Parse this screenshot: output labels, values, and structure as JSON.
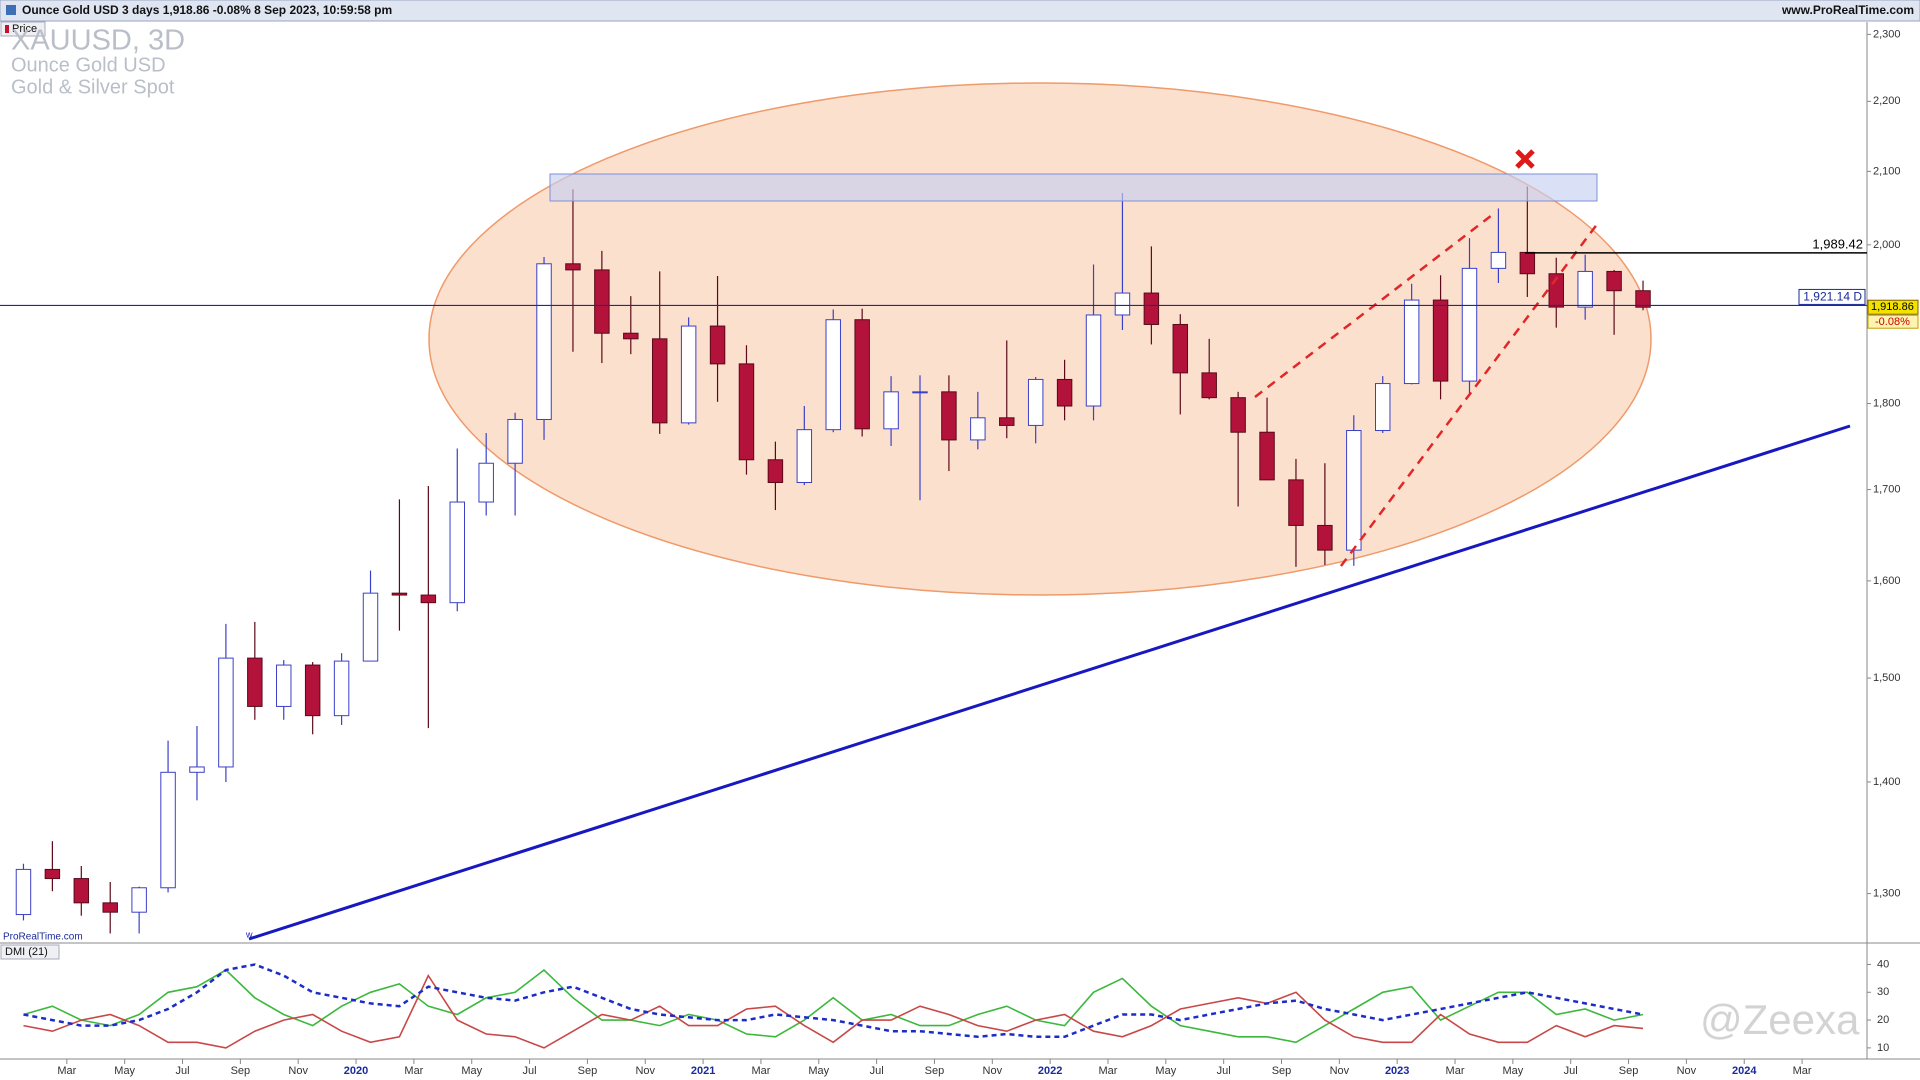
{
  "header": {
    "title": "Ounce Gold USD 3 days 1,918.86 -0.08% 8 Sep 2023, 10:59:58 pm",
    "site": "www.ProRealTime.com",
    "price_tab": "Price",
    "symbol": "XAUUSD, 3D",
    "name": "Ounce Gold USD",
    "market": "Gold & Silver Spot",
    "credit": "ProRealTime.com",
    "watermark": "@Zeexa"
  },
  "chart_data": [
    {
      "type": "candlestick",
      "log_scale": true,
      "x": [
        "2019-01",
        "2019-02",
        "2019-03",
        "2019-04",
        "2019-05",
        "2019-06",
        "2019-07",
        "2019-08",
        "2019-09",
        "2019-10",
        "2019-11",
        "2019-12",
        "2020-01",
        "2020-02",
        "2020-03",
        "2020-04",
        "2020-05",
        "2020-06",
        "2020-07",
        "2020-08",
        "2020-09",
        "2020-10",
        "2020-11",
        "2020-12",
        "2021-01",
        "2021-02",
        "2021-03",
        "2021-04",
        "2021-05",
        "2021-06",
        "2021-07",
        "2021-08",
        "2021-09",
        "2021-10",
        "2021-11",
        "2021-12",
        "2022-01",
        "2022-02",
        "2022-03",
        "2022-04",
        "2022-05",
        "2022-06",
        "2022-07",
        "2022-08",
        "2022-09",
        "2022-10",
        "2022-11",
        "2022-12",
        "2023-01",
        "2023-02",
        "2023-03",
        "2023-04",
        "2023-05",
        "2023-06",
        "2023-07",
        "2023-08",
        "2023-09"
      ],
      "open": [
        1282,
        1321,
        1313,
        1292,
        1284,
        1305,
        1409,
        1414,
        1520,
        1472,
        1513,
        1463,
        1517,
        1587,
        1585,
        1577,
        1686,
        1730,
        1781,
        1975,
        1967,
        1886,
        1879,
        1777,
        1895,
        1848,
        1734,
        1708,
        1769,
        1903,
        1770,
        1814,
        1814,
        1757,
        1783,
        1774,
        1829,
        1797,
        1909,
        1937,
        1897,
        1837,
        1807,
        1766,
        1711,
        1660,
        1633,
        1768,
        1824,
        1928,
        1827,
        1969,
        1990,
        1962,
        1919,
        1965,
        1940
      ],
      "high": [
        1326,
        1346,
        1324,
        1310,
        1306,
        1439,
        1453,
        1555,
        1557,
        1518,
        1516,
        1525,
        1611,
        1689,
        1704,
        1747,
        1765,
        1789,
        1984,
        2075,
        1992,
        1933,
        1965,
        1906,
        1959,
        1871,
        1755,
        1797,
        1916,
        1917,
        1833,
        1834,
        1834,
        1814,
        1877,
        1832,
        1853,
        1974,
        2070,
        1998,
        1910,
        1879,
        1814,
        1807,
        1735,
        1730,
        1786,
        1833,
        1949,
        1960,
        2009,
        2049,
        2079,
        1983,
        1987,
        1967,
        1953
      ],
      "low": [
        1277,
        1302,
        1281,
        1266,
        1266,
        1301,
        1383,
        1400,
        1459,
        1459,
        1445,
        1454,
        1517,
        1548,
        1451,
        1568,
        1671,
        1671,
        1757,
        1863,
        1849,
        1860,
        1764,
        1775,
        1802,
        1717,
        1677,
        1705,
        1766,
        1761,
        1750,
        1688,
        1721,
        1746,
        1759,
        1753,
        1780,
        1780,
        1890,
        1872,
        1787,
        1805,
        1681,
        1711,
        1615,
        1617,
        1616,
        1765,
        1823,
        1805,
        1810,
        1950,
        1932,
        1893,
        1903,
        1884,
        1915
      ],
      "close": [
        1321,
        1313,
        1292,
        1284,
        1305,
        1409,
        1414,
        1520,
        1472,
        1513,
        1463,
        1517,
        1587,
        1585,
        1577,
        1686,
        1730,
        1781,
        1975,
        1967,
        1886,
        1879,
        1777,
        1895,
        1848,
        1734,
        1708,
        1769,
        1903,
        1770,
        1814,
        1814,
        1757,
        1783,
        1774,
        1829,
        1797,
        1909,
        1937,
        1897,
        1837,
        1807,
        1766,
        1711,
        1660,
        1633,
        1768,
        1824,
        1928,
        1827,
        1969,
        1990,
        1962,
        1919,
        1965,
        1940,
        1918.86
      ],
      "up_color": "#ffffff",
      "up_edge": "#3b40c8",
      "down_color": "#b3123a",
      "down_edge": "#5a0a1a",
      "xlim": [
        "2019-01",
        "2024-04"
      ],
      "ylim": [
        1258,
        2319
      ],
      "yticks": [
        {
          "value": 1300,
          "label": "1,300"
        },
        {
          "value": 1400,
          "label": "1,400"
        },
        {
          "value": 1500,
          "label": "1,500"
        },
        {
          "value": 1600,
          "label": "1,600"
        },
        {
          "value": 1700,
          "label": "1,700"
        },
        {
          "value": 1800,
          "label": "1,800"
        },
        {
          "value": 2000,
          "label": "2,000"
        },
        {
          "value": 2100,
          "label": "2,100"
        },
        {
          "value": 2200,
          "label": "2,200"
        },
        {
          "value": 2300,
          "label": "2,300"
        }
      ],
      "levels": [
        {
          "value": 1989.42,
          "label": "1,989.42",
          "color": "#000000"
        },
        {
          "value": 1921.14,
          "label": "1,921.14 D",
          "color": "#1a2a9a"
        }
      ],
      "last_price": {
        "value": 1918.86,
        "label": "1,918.86"
      },
      "change_label": "-0.08%"
    },
    {
      "type": "line",
      "title": "DMI (21)",
      "x": [
        "2019-01",
        "2019-02",
        "2019-03",
        "2019-04",
        "2019-05",
        "2019-06",
        "2019-07",
        "2019-08",
        "2019-09",
        "2019-10",
        "2019-11",
        "2019-12",
        "2020-01",
        "2020-02",
        "2020-03",
        "2020-04",
        "2020-05",
        "2020-06",
        "2020-07",
        "2020-08",
        "2020-09",
        "2020-10",
        "2020-11",
        "2020-12",
        "2021-01",
        "2021-02",
        "2021-03",
        "2021-04",
        "2021-05",
        "2021-06",
        "2021-07",
        "2021-08",
        "2021-09",
        "2021-10",
        "2021-11",
        "2021-12",
        "2022-01",
        "2022-02",
        "2022-03",
        "2022-04",
        "2022-05",
        "2022-06",
        "2022-07",
        "2022-08",
        "2022-09",
        "2022-10",
        "2022-11",
        "2022-12",
        "2023-01",
        "2023-02",
        "2023-03",
        "2023-04",
        "2023-05",
        "2023-06",
        "2023-07",
        "2023-08",
        "2023-09"
      ],
      "series": [
        {
          "color": "#3cb83c",
          "dashed": false,
          "values": [
            22,
            25,
            20,
            18,
            22,
            30,
            32,
            38,
            28,
            22,
            18,
            25,
            30,
            33,
            25,
            22,
            28,
            30,
            38,
            28,
            20,
            20,
            18,
            22,
            20,
            15,
            14,
            20,
            28,
            20,
            22,
            18,
            18,
            22,
            25,
            20,
            18,
            30,
            35,
            25,
            18,
            16,
            14,
            14,
            12,
            18,
            24,
            30,
            32,
            20,
            25,
            30,
            30,
            22,
            24,
            20,
            22
          ]
        },
        {
          "color": "#c84848",
          "dashed": false,
          "values": [
            18,
            16,
            20,
            22,
            18,
            12,
            12,
            10,
            16,
            20,
            22,
            16,
            12,
            14,
            36,
            20,
            15,
            14,
            10,
            16,
            22,
            20,
            25,
            18,
            18,
            24,
            25,
            18,
            12,
            20,
            20,
            25,
            22,
            18,
            16,
            20,
            22,
            16,
            14,
            18,
            24,
            26,
            28,
            26,
            30,
            20,
            14,
            12,
            12,
            22,
            15,
            12,
            12,
            18,
            14,
            18,
            17
          ]
        },
        {
          "color": "#1c2cc8",
          "dashed": true,
          "values": [
            22,
            20,
            18,
            18,
            20,
            24,
            30,
            38,
            40,
            36,
            30,
            28,
            26,
            25,
            32,
            30,
            28,
            27,
            30,
            32,
            28,
            24,
            22,
            21,
            20,
            20,
            22,
            21,
            20,
            18,
            16,
            16,
            15,
            14,
            15,
            14,
            14,
            18,
            22,
            22,
            20,
            22,
            24,
            26,
            27,
            24,
            22,
            20,
            22,
            24,
            26,
            28,
            30,
            28,
            26,
            24,
            22
          ]
        }
      ],
      "xlim": [
        "2019-01",
        "2024-04"
      ],
      "ylim": [
        6,
        47
      ],
      "yticks": [
        10,
        20,
        30,
        40
      ]
    }
  ],
  "xticks": [
    {
      "value": "2019-03",
      "label": "Mar"
    },
    {
      "value": "2019-05",
      "label": "May"
    },
    {
      "value": "2019-07",
      "label": "Jul"
    },
    {
      "value": "2019-09",
      "label": "Sep"
    },
    {
      "value": "2019-11",
      "label": "Nov"
    },
    {
      "value": "2020-01",
      "label": "2020"
    },
    {
      "value": "2020-03",
      "label": "Mar"
    },
    {
      "value": "2020-05",
      "label": "May"
    },
    {
      "value": "2020-07",
      "label": "Jul"
    },
    {
      "value": "2020-09",
      "label": "Sep"
    },
    {
      "value": "2020-11",
      "label": "Nov"
    },
    {
      "value": "2021-01",
      "label": "2021"
    },
    {
      "value": "2021-03",
      "label": "Mar"
    },
    {
      "value": "2021-05",
      "label": "May"
    },
    {
      "value": "2021-07",
      "label": "Jul"
    },
    {
      "value": "2021-09",
      "label": "Sep"
    },
    {
      "value": "2021-11",
      "label": "Nov"
    },
    {
      "value": "2022-01",
      "label": "2022"
    },
    {
      "value": "2022-03",
      "label": "Mar"
    },
    {
      "value": "2022-05",
      "label": "May"
    },
    {
      "value": "2022-07",
      "label": "Jul"
    },
    {
      "value": "2022-09",
      "label": "Sep"
    },
    {
      "value": "2022-11",
      "label": "Nov"
    },
    {
      "value": "2023-01",
      "label": "2023"
    },
    {
      "value": "2023-03",
      "label": "Mar"
    },
    {
      "value": "2023-05",
      "label": "May"
    },
    {
      "value": "2023-07",
      "label": "Jul"
    },
    {
      "value": "2023-09",
      "label": "Sep"
    },
    {
      "value": "2023-11",
      "label": "Nov"
    },
    {
      "value": "2024-01",
      "label": "2024"
    },
    {
      "value": "2024-03",
      "label": "Mar"
    }
  ]
}
